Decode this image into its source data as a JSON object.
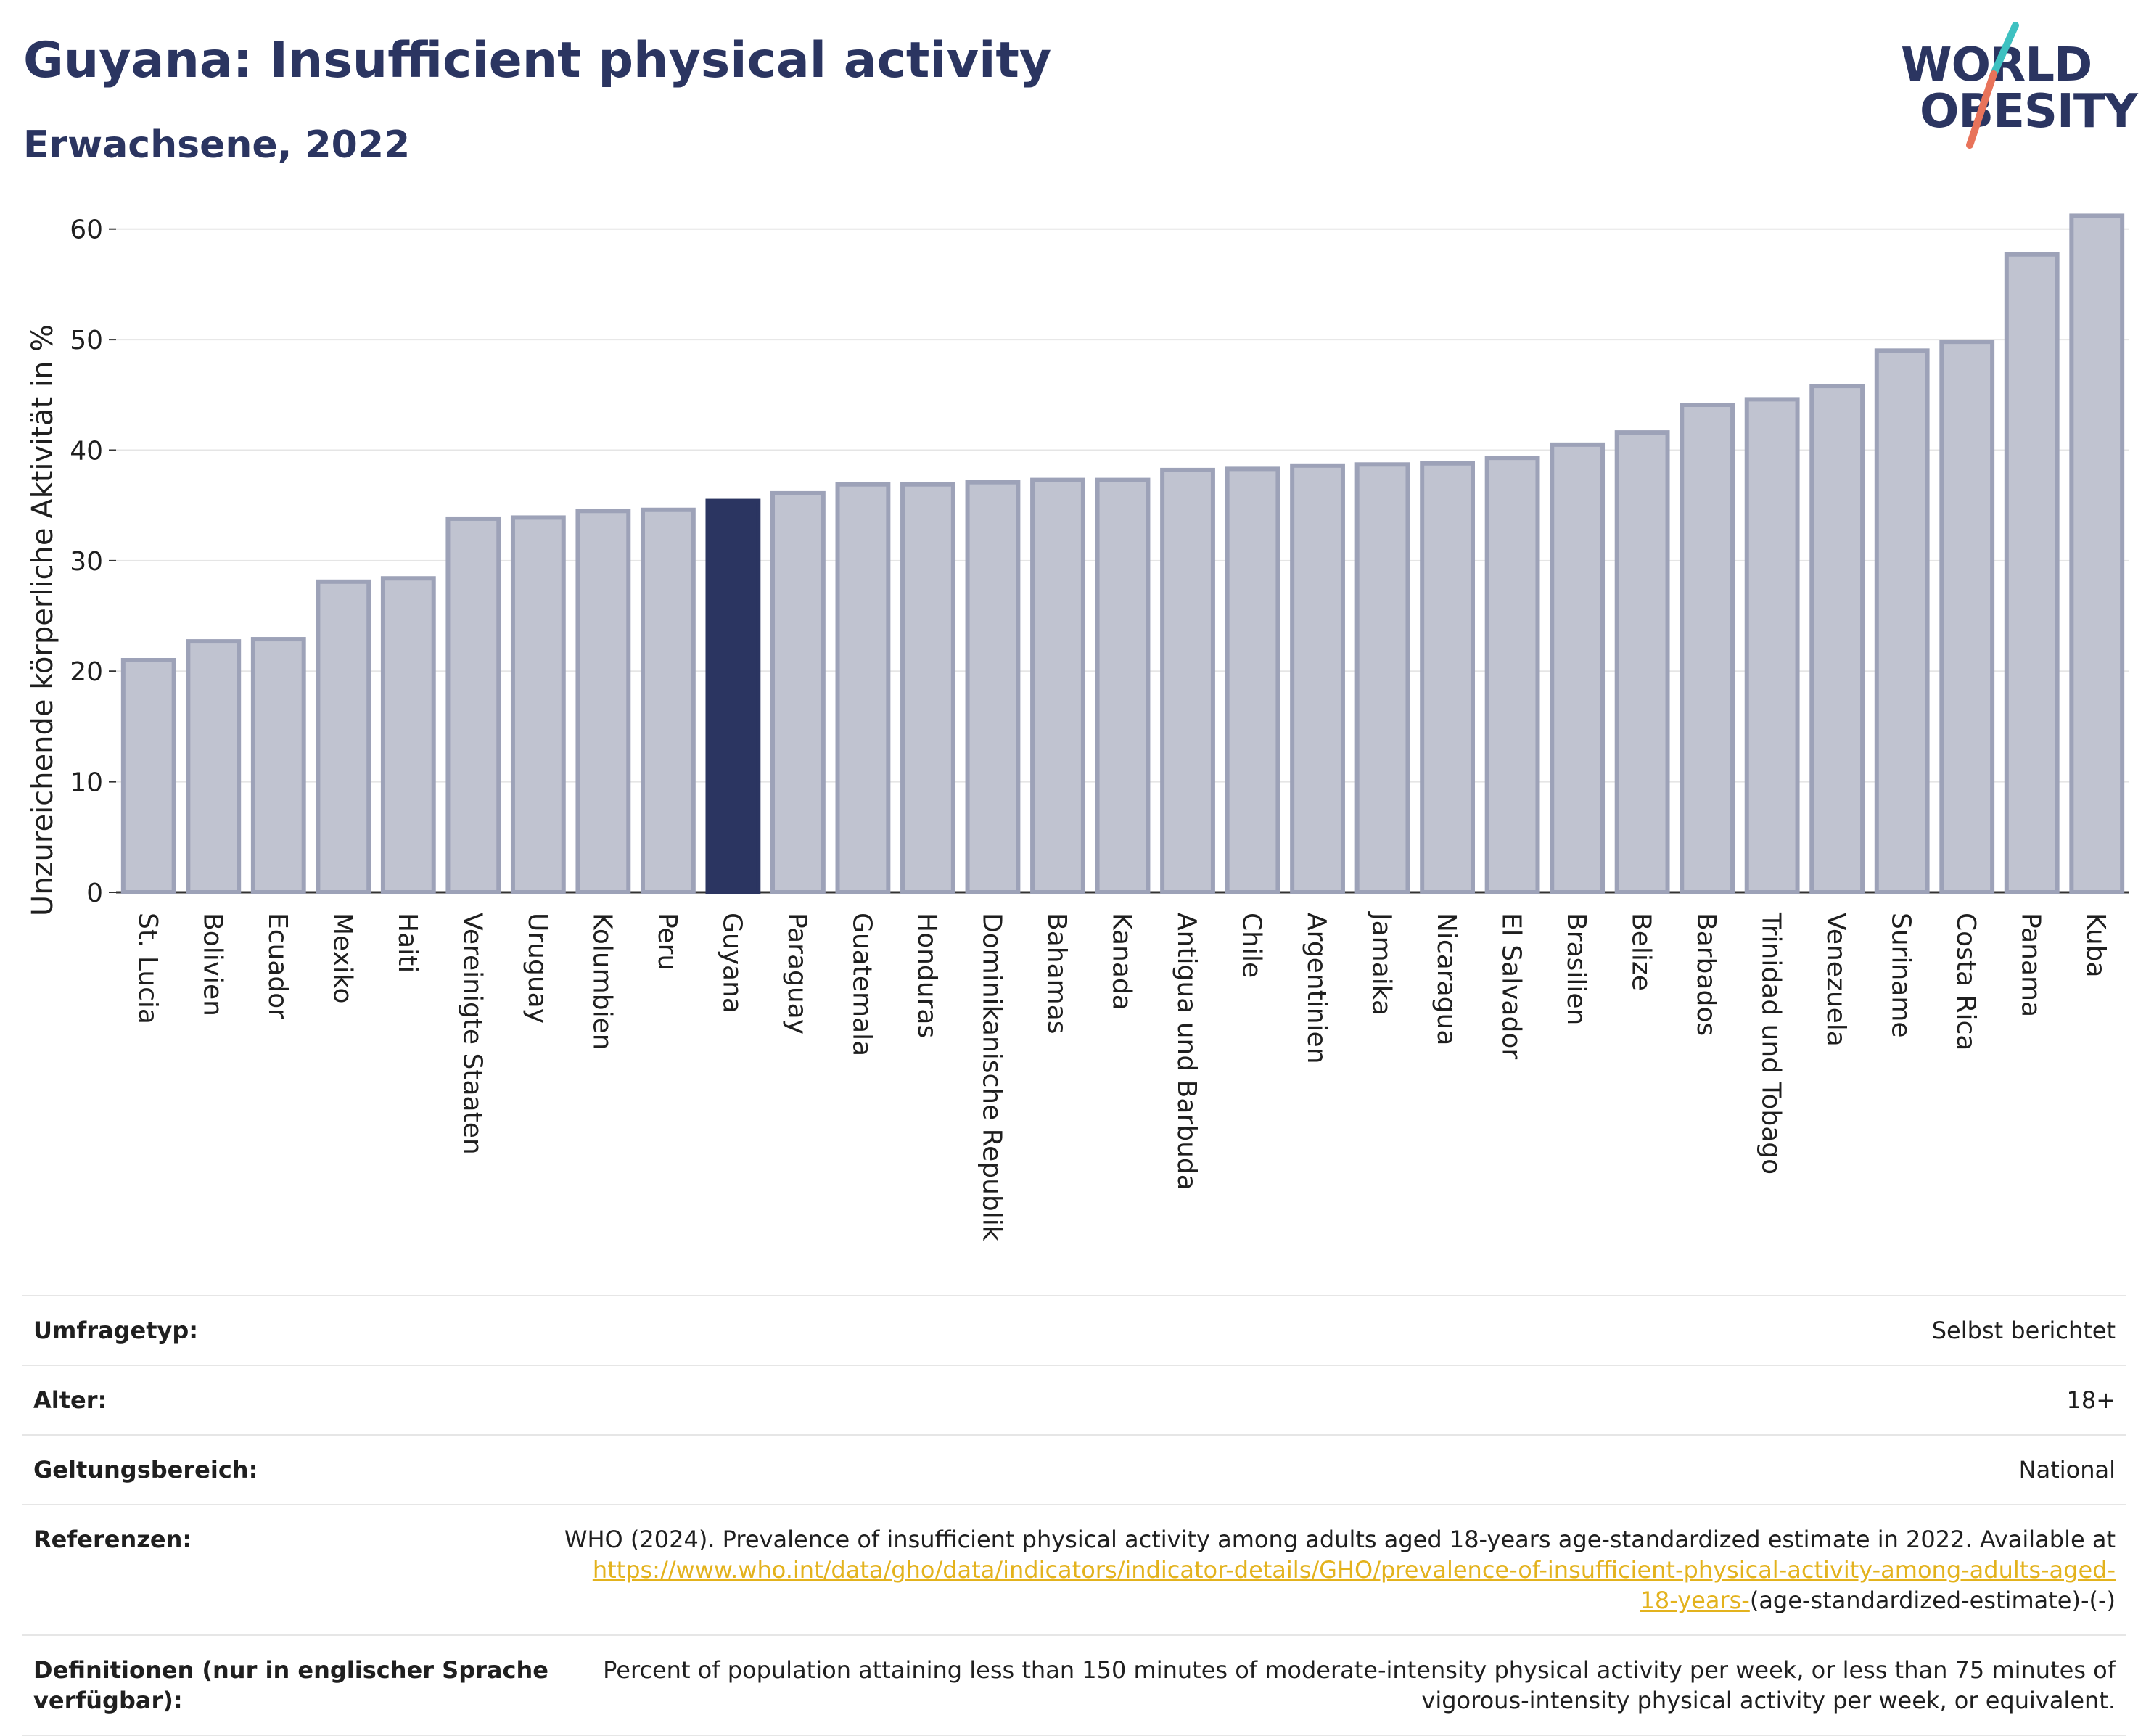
{
  "header": {
    "title": "Guyana: Insufficient physical activity",
    "subtitle": "Erwachsene, 2022"
  },
  "logo": {
    "line1": "WORLD",
    "line2": "OBESITY",
    "accent_colors": [
      "#3ec1c1",
      "#e8735a"
    ]
  },
  "colors": {
    "highlight": "#2b3561",
    "bar": "#c0c3d0",
    "bar_edge": "#9da2b8",
    "grid": "#e5e5e5"
  },
  "chart_data": {
    "type": "bar",
    "ylabel": "Unzureichende körperliche Aktivität in %",
    "ylim": [
      0,
      63
    ],
    "yticks": [
      0,
      10,
      20,
      30,
      40,
      50,
      60
    ],
    "grid": true,
    "highlight": "Guyana",
    "categories": [
      "St. Lucia",
      "Bolivien",
      "Ecuador",
      "Mexiko",
      "Haiti",
      "Vereinigte Staaten",
      "Uruguay",
      "Kolumbien",
      "Peru",
      "Guyana",
      "Paraguay",
      "Guatemala",
      "Honduras",
      "Dominikanische Republik",
      "Bahamas",
      "Kanada",
      "Antigua und Barbuda",
      "Chile",
      "Argentinien",
      "Jamaika",
      "Nicaragua",
      "El Salvador",
      "Brasilien",
      "Belize",
      "Barbados",
      "Trinidad und Tobago",
      "Venezuela",
      "Suriname",
      "Costa Rica",
      "Panama",
      "Kuba"
    ],
    "values": [
      21.0,
      22.7,
      22.9,
      28.1,
      28.4,
      33.8,
      33.9,
      34.5,
      34.6,
      35.4,
      36.1,
      36.9,
      36.9,
      37.1,
      37.3,
      37.3,
      38.2,
      38.3,
      38.6,
      38.7,
      38.8,
      39.3,
      40.5,
      41.6,
      44.1,
      44.6,
      45.8,
      49.0,
      49.8,
      57.7,
      61.2
    ]
  },
  "info": {
    "survey_type_label": "Umfragetyp:",
    "survey_type_value": "Selbst berichtet",
    "age_label": "Alter:",
    "age_value": "18+",
    "scope_label": "Geltungsbereich:",
    "scope_value": "National",
    "references_label": "Referenzen:",
    "references_text": "WHO (2024). Prevalence of insufficient physical activity among adults aged 18-years age-standardized estimate in 2022. Available at",
    "references_link_line1": "https://www.who.int/data/gho/data/indicators/indicator-details/GHO/prevalence-of-insufficient-physical-activity-among-adults-aged-",
    "references_link_line2": "18-years-",
    "references_suffix": "(age-standardized-estimate)-(-)",
    "definitions_label": "Definitionen (nur in englischer Sprache verfügbar):",
    "definitions_line1": "Percent of population attaining less than 150 minutes of moderate-intensity physical activity per week, or less than 75 minutes of",
    "definitions_line2": "vigorous-intensity physical activity per week, or equivalent."
  }
}
